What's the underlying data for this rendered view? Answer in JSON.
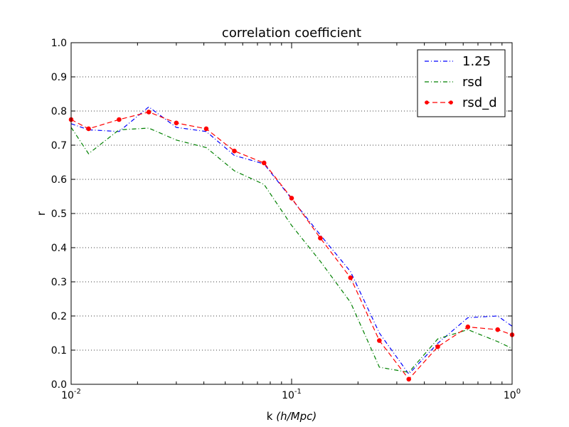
{
  "chart_data": {
    "type": "line",
    "title": "correlation coefficient",
    "xlabel_base": "k ",
    "xlabel_units": "(h/Mpc)",
    "ylabel": "r",
    "x_scale": "log",
    "xlim": [
      0.01,
      1.0
    ],
    "ylim": [
      0.0,
      1.0
    ],
    "grid": "horizontal dotted",
    "legend_position": "top-right",
    "x_ticks": [
      {
        "value": 0.01,
        "base": "10",
        "exp": "-2"
      },
      {
        "value": 0.1,
        "base": "10",
        "exp": "-1"
      },
      {
        "value": 1.0,
        "base": "10",
        "exp": "0"
      }
    ],
    "y_ticks": [
      "0.0",
      "0.1",
      "0.2",
      "0.3",
      "0.4",
      "0.5",
      "0.6",
      "0.7",
      "0.8",
      "0.9",
      "1.0"
    ],
    "series": [
      {
        "name": "1.25",
        "color": "#0000ff",
        "style": "dashdot",
        "markers": false,
        "x": [
          0.01,
          0.012,
          0.0165,
          0.0225,
          0.03,
          0.041,
          0.055,
          0.075,
          0.1,
          0.135,
          0.185,
          0.25,
          0.34,
          0.46,
          0.63,
          0.86,
          1.0
        ],
        "y": [
          0.763,
          0.745,
          0.74,
          0.812,
          0.752,
          0.74,
          0.67,
          0.645,
          0.543,
          0.437,
          0.33,
          0.15,
          0.03,
          0.12,
          0.195,
          0.2,
          0.17
        ]
      },
      {
        "name": "rsd",
        "color": "#008000",
        "style": "dashdot",
        "markers": false,
        "x": [
          0.01,
          0.012,
          0.0165,
          0.0225,
          0.03,
          0.041,
          0.055,
          0.075,
          0.1,
          0.135,
          0.185,
          0.25,
          0.34,
          0.46,
          0.63,
          0.86,
          1.0
        ],
        "y": [
          0.752,
          0.675,
          0.745,
          0.75,
          0.715,
          0.693,
          0.625,
          0.585,
          0.465,
          0.36,
          0.24,
          0.05,
          0.035,
          0.133,
          0.16,
          0.125,
          0.105
        ]
      },
      {
        "name": "rsd_d",
        "color": "#ff0000",
        "style": "dashed",
        "markers": true,
        "x": [
          0.01,
          0.012,
          0.0165,
          0.0225,
          0.03,
          0.041,
          0.055,
          0.075,
          0.1,
          0.135,
          0.185,
          0.25,
          0.34,
          0.46,
          0.63,
          0.86,
          1.0
        ],
        "y": [
          0.775,
          0.748,
          0.775,
          0.797,
          0.765,
          0.748,
          0.683,
          0.648,
          0.545,
          0.428,
          0.312,
          0.128,
          0.015,
          0.11,
          0.168,
          0.16,
          0.145
        ]
      }
    ]
  }
}
